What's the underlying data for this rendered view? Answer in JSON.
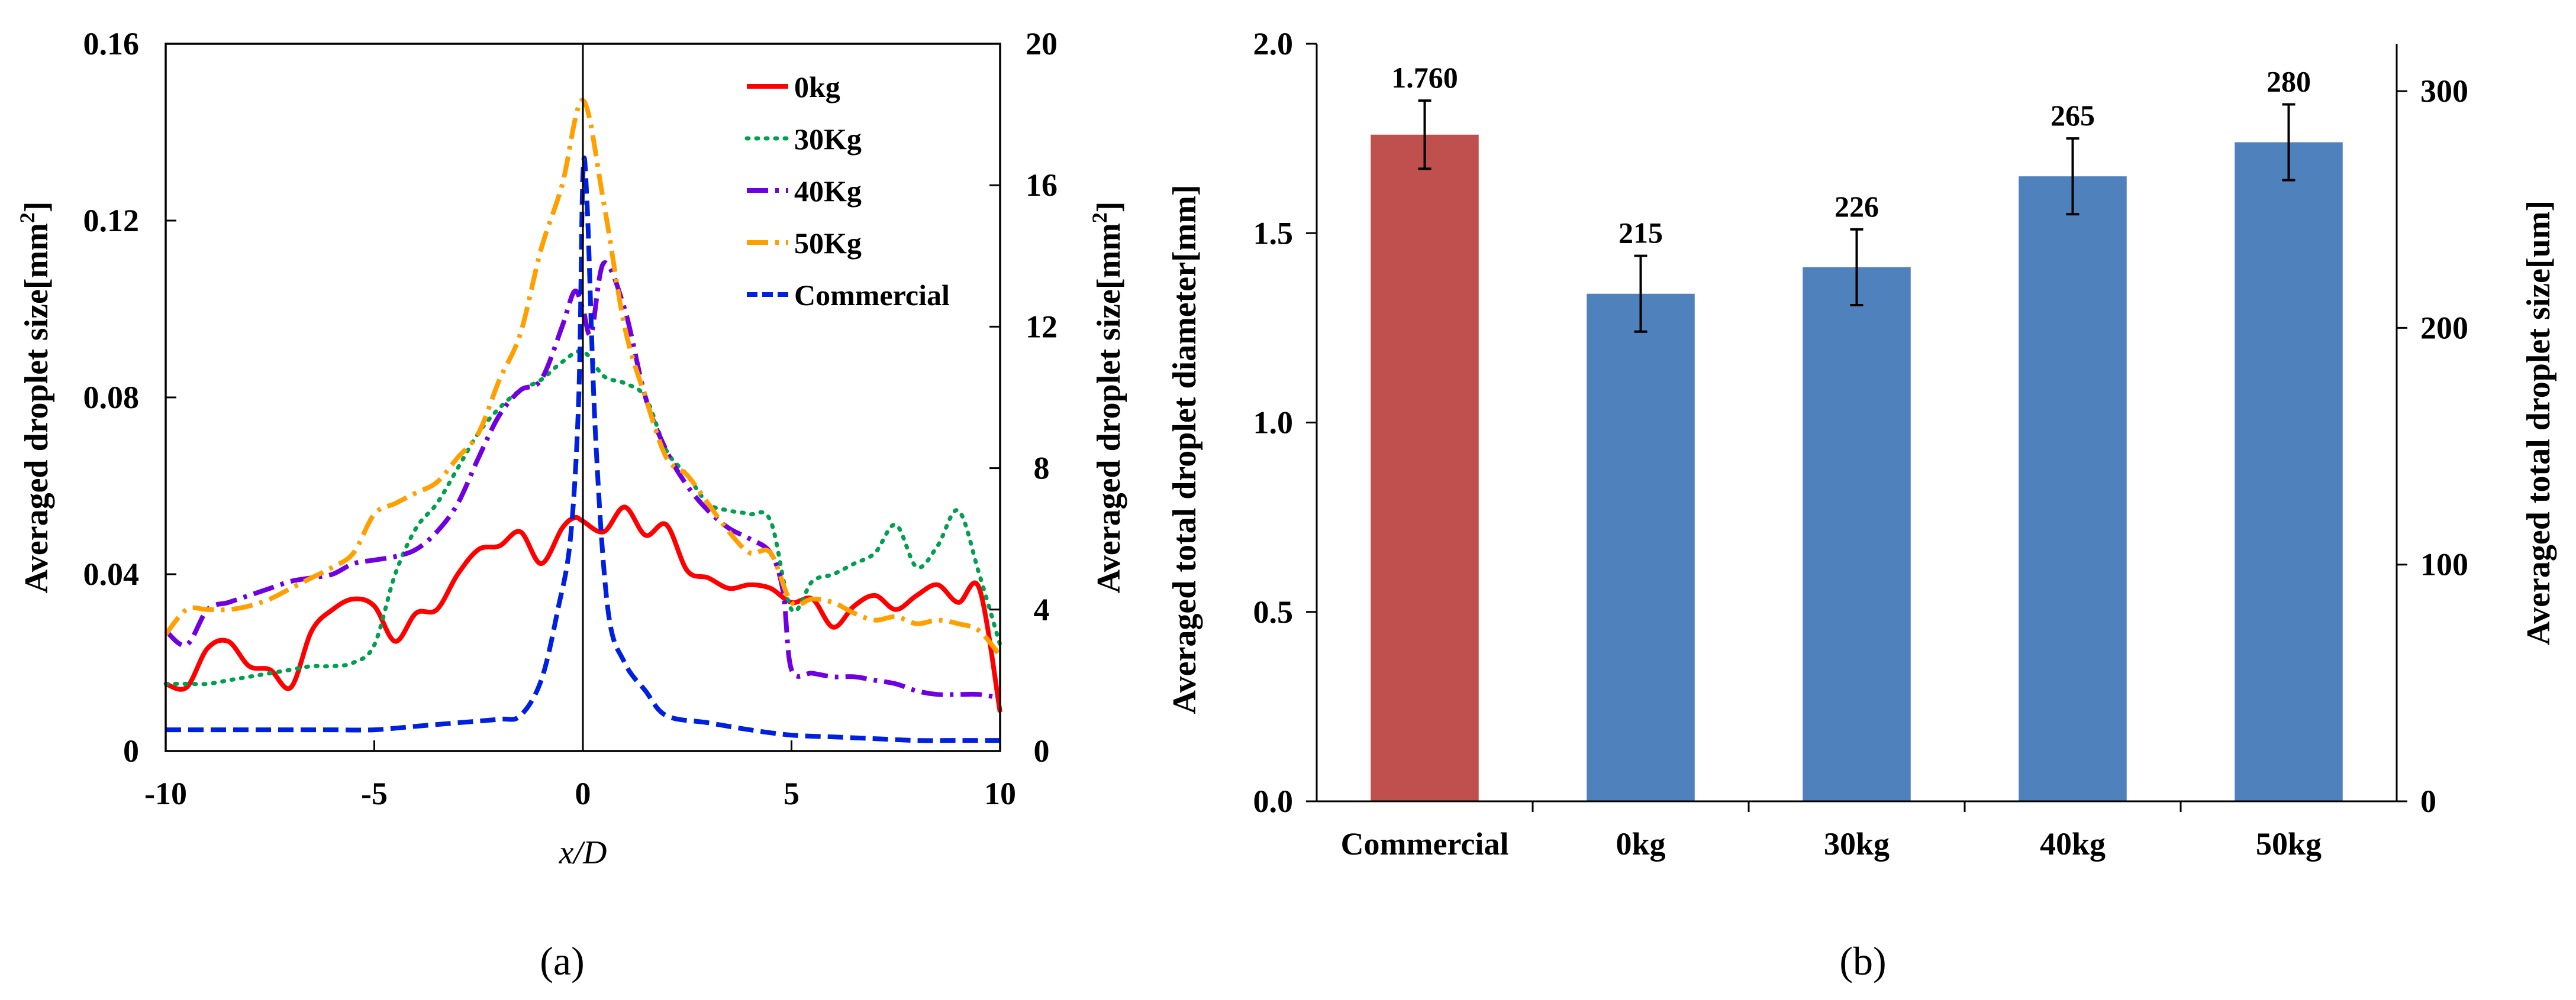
{
  "figure": {
    "panel_a_label": "(a)",
    "panel_b_label": "(b)"
  },
  "chart_data": [
    {
      "type": "line",
      "panel": "(a)",
      "xlabel": "x/D",
      "ylabel": "Averaged droplet size[mm²]",
      "ylabel2": "Averaged droplet size[mm²]",
      "xlim": [
        -10,
        10
      ],
      "ylim": [
        0,
        0.16
      ],
      "ylim2": [
        0,
        20
      ],
      "x_ticks": [
        "-10",
        "-5",
        "0",
        "5",
        "10"
      ],
      "y_ticks": [
        "0",
        "0.04",
        "0.08",
        "0.12",
        "0.16"
      ],
      "y2_ticks": [
        "0",
        "4",
        "8",
        "12",
        "16",
        "20"
      ],
      "grid": false,
      "legend_position": "top-right",
      "vertical_reference_line_x": 0,
      "series": [
        {
          "name": "0kg",
          "color": "#ff0000",
          "dash": "solid",
          "axis": "right",
          "x": [
            -10,
            -9.5,
            -9,
            -8.5,
            -8,
            -7.5,
            -7,
            -6.5,
            -6,
            -5.5,
            -5,
            -4.5,
            -4,
            -3.5,
            -3,
            -2.5,
            -2,
            -1.5,
            -1,
            -0.5,
            -0.2,
            0,
            0.5,
            1,
            1.5,
            2,
            2.5,
            3,
            3.5,
            4,
            4.5,
            5,
            5.5,
            6,
            6.5,
            7,
            7.5,
            8,
            8.5,
            9,
            9.5,
            10
          ],
          "y": [
            1.9,
            1.8,
            2.9,
            3.1,
            2.4,
            2.3,
            1.8,
            3.4,
            4.0,
            4.3,
            4.1,
            3.1,
            3.9,
            4.0,
            5.0,
            5.7,
            5.8,
            6.2,
            5.3,
            6.3,
            6.6,
            6.5,
            6.2,
            6.9,
            6.1,
            6.4,
            5.1,
            4.9,
            4.6,
            4.7,
            4.6,
            4.2,
            4.3,
            3.5,
            4.1,
            4.4,
            4.0,
            4.4,
            4.7,
            4.2,
            4.6,
            1.1
          ]
        },
        {
          "name": "30Kg",
          "color": "#00a050",
          "dash": "dotted",
          "axis": "right",
          "x": [
            -10,
            -9.5,
            -9,
            -8.5,
            -8,
            -7.5,
            -7,
            -6.5,
            -6,
            -5.5,
            -5,
            -4.5,
            -4,
            -3.5,
            -3,
            -2.5,
            -2,
            -1.5,
            -1,
            -0.5,
            0,
            0.5,
            1,
            1.5,
            2,
            2.5,
            3,
            3.5,
            4,
            4.5,
            5,
            5.5,
            6,
            6.5,
            7,
            7.5,
            8,
            8.5,
            9,
            9.5,
            10
          ],
          "y": [
            1.9,
            1.9,
            1.9,
            2.0,
            2.1,
            2.2,
            2.3,
            2.4,
            2.4,
            2.5,
            3.0,
            5.0,
            6.3,
            7.0,
            8.0,
            9.0,
            9.7,
            10.2,
            10.5,
            11.0,
            11.3,
            10.6,
            10.4,
            10.0,
            8.5,
            7.8,
            7.0,
            6.8,
            6.7,
            6.5,
            4.0,
            4.8,
            5.0,
            5.3,
            5.6,
            6.4,
            5.2,
            5.8,
            6.8,
            5.0,
            3.0
          ]
        },
        {
          "name": "40Kg",
          "color": "#7000e0",
          "dash": "dashdot",
          "axis": "right",
          "x": [
            -10,
            -9.5,
            -9,
            -8.5,
            -8,
            -7.5,
            -7,
            -6.5,
            -6,
            -5.5,
            -5,
            -4.5,
            -4,
            -3.5,
            -3,
            -2.5,
            -2,
            -1.5,
            -1,
            -0.5,
            -0.2,
            0,
            0.2,
            0.5,
            1,
            1.5,
            2,
            2.5,
            3,
            3.5,
            4,
            4.5,
            4.8,
            5,
            5.5,
            6,
            6.5,
            7,
            7.5,
            8,
            8.5,
            9,
            9.5,
            10
          ],
          "y": [
            3.4,
            3.0,
            4.0,
            4.2,
            4.4,
            4.6,
            4.8,
            4.9,
            5.0,
            5.3,
            5.4,
            5.5,
            5.7,
            6.2,
            7.0,
            8.3,
            9.5,
            10.2,
            10.5,
            12.0,
            13.0,
            12.5,
            11.8,
            13.8,
            12.5,
            10.0,
            8.5,
            7.5,
            6.8,
            6.3,
            6.0,
            5.6,
            4.5,
            2.3,
            2.2,
            2.1,
            2.1,
            2.0,
            1.9,
            1.7,
            1.6,
            1.6,
            1.6,
            1.5
          ]
        },
        {
          "name": "50Kg",
          "color": "#ffa000",
          "dash": "dashdot",
          "axis": "right",
          "x": [
            -10,
            -9.5,
            -9,
            -8.5,
            -8,
            -7.5,
            -7,
            -6.5,
            -6,
            -5.5,
            -5,
            -4.5,
            -4,
            -3.5,
            -3,
            -2.5,
            -2,
            -1.5,
            -1,
            -0.5,
            0,
            0.5,
            1,
            1.5,
            2,
            2.5,
            3,
            3.5,
            4,
            4.5,
            5,
            5.5,
            6,
            6.5,
            7,
            7.5,
            8,
            8.5,
            9,
            9.5,
            10
          ],
          "y": [
            3.3,
            4.0,
            4.0,
            4.0,
            4.1,
            4.3,
            4.6,
            4.9,
            5.2,
            5.6,
            6.7,
            7.0,
            7.3,
            7.6,
            8.3,
            9.0,
            10.5,
            11.8,
            14.2,
            16.0,
            18.4,
            15.5,
            12.0,
            10.0,
            8.3,
            7.8,
            7.0,
            6.2,
            5.6,
            5.6,
            4.2,
            4.3,
            4.2,
            3.9,
            3.7,
            3.8,
            3.6,
            3.7,
            3.6,
            3.4,
            2.7
          ]
        },
        {
          "name": "Commercial",
          "color": "#0020e0",
          "dash": "dashed",
          "axis": "right",
          "x": [
            -10,
            -9,
            -8,
            -7,
            -6,
            -5,
            -4,
            -3,
            -2,
            -1.5,
            -1,
            -0.6,
            -0.3,
            -0.1,
            0,
            0.1,
            0.3,
            0.6,
            1,
            1.5,
            2,
            3,
            4,
            5,
            6,
            7,
            8,
            9,
            10
          ],
          "y": [
            0.6,
            0.6,
            0.6,
            0.6,
            0.6,
            0.6,
            0.7,
            0.8,
            0.9,
            1.0,
            2.0,
            4.0,
            6.0,
            10.0,
            16.3,
            15.5,
            9.0,
            4.0,
            2.5,
            1.7,
            1.0,
            0.8,
            0.6,
            0.45,
            0.4,
            0.35,
            0.3,
            0.3,
            0.3
          ]
        }
      ]
    },
    {
      "type": "bar",
      "panel": "(b)",
      "ylabel": "Averaged total droplet diameter[mm]",
      "ylabel2": "Averaged total droplet size[um]",
      "ylim": [
        0,
        2.0
      ],
      "ylim2": [
        0,
        320
      ],
      "y_ticks": [
        "0.0",
        "0.5",
        "1.0",
        "1.5",
        "2.0"
      ],
      "y2_ticks": [
        "0",
        "100",
        "200",
        "300"
      ],
      "grid": false,
      "categories": [
        "Commercial",
        "0kg",
        "30kg",
        "40kg",
        "50kg"
      ],
      "values": [
        1.76,
        1.34,
        1.41,
        1.65,
        1.74
      ],
      "errors": [
        0.09,
        0.1,
        0.1,
        0.1,
        0.1
      ],
      "data_labels": [
        "1.760",
        "215",
        "226",
        "265",
        "280"
      ],
      "colors": [
        "#c0504d",
        "#4f81bd",
        "#4f81bd",
        "#4f81bd",
        "#4f81bd"
      ]
    }
  ]
}
